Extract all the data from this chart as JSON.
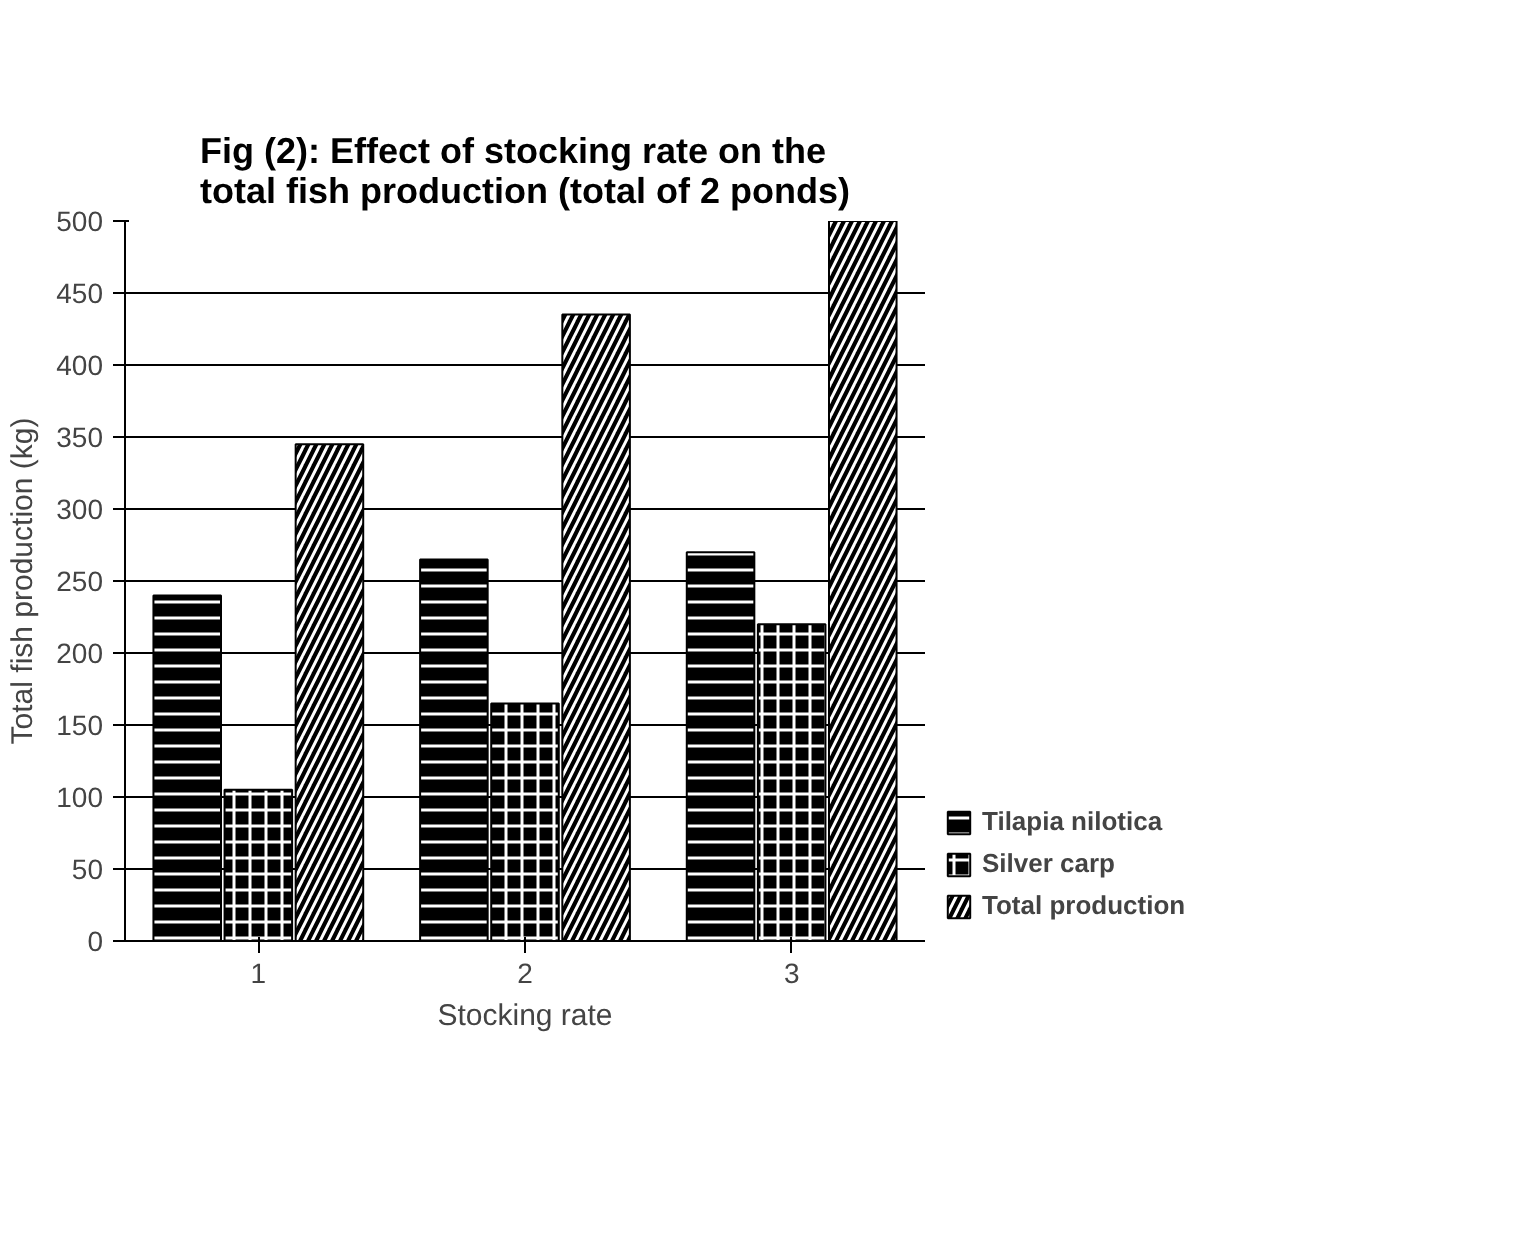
{
  "chart_data": {
    "type": "bar",
    "title": "Fig (2): Effect of stocking rate on the total fish production (total of 2 ponds)",
    "xlabel": "Stocking rate",
    "ylabel": "Total fish production (kg)",
    "categories": [
      "1",
      "2",
      "3"
    ],
    "series": [
      {
        "name": "Tilapia nilotica",
        "color": "#000000",
        "values": [
          240,
          265,
          270
        ]
      },
      {
        "name": "Silver carp",
        "color": "#000000",
        "values": [
          105,
          165,
          220
        ]
      },
      {
        "name": "Total production",
        "color": "#000000",
        "values": [
          345,
          435,
          500
        ]
      }
    ],
    "ylim": [
      0,
      500
    ],
    "yticks": [
      0,
      50,
      100,
      150,
      200,
      250,
      300,
      350,
      400,
      450,
      500
    ],
    "grid": "y",
    "legend": "right"
  }
}
